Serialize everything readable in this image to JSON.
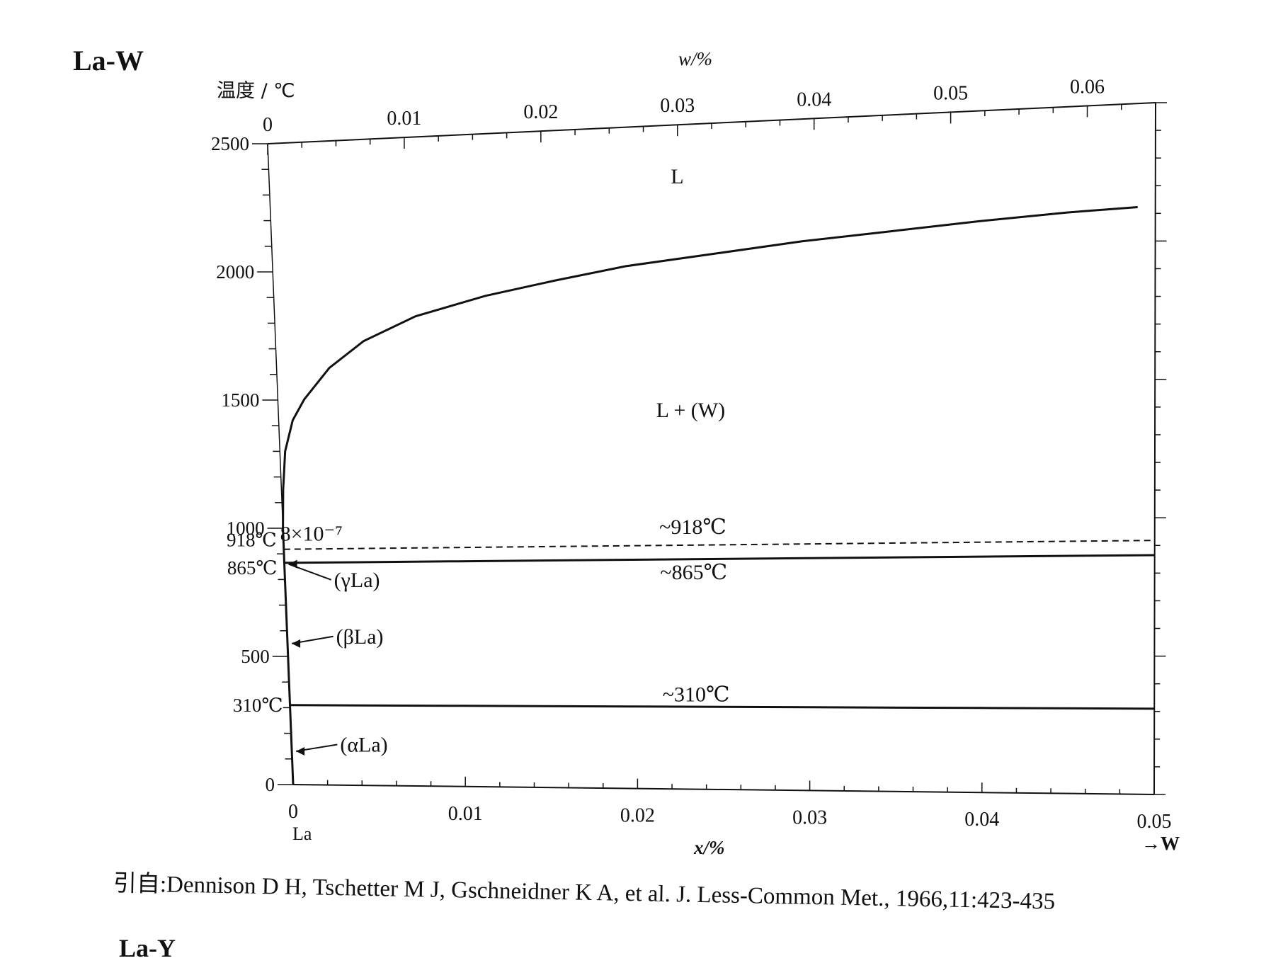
{
  "figure": {
    "title": "La-W",
    "temp_label": "温度 / ℃",
    "top_axis_label": "w/%",
    "bottom_axis_label": "x/%",
    "w_end_label": "→W",
    "la_label": "La",
    "citation": "引自:Dennison D H, Tschetter M J, Gschneidner K A, et al. J. Less-Common Met., 1966,11:423-435",
    "next_title": "La-Y"
  },
  "chart_data": {
    "type": "line",
    "title": "La-W",
    "ylabel": "温度 / ℃",
    "xlabel": "x/%",
    "x2label": "w/%",
    "ylim": [
      0,
      2500
    ],
    "xlim": [
      0,
      0.05
    ],
    "x2lim": [
      0,
      0.065
    ],
    "y_ticks": [
      {
        "value": 0,
        "label": "0"
      },
      {
        "value": 500,
        "label": "500"
      },
      {
        "value": 1000,
        "label": "1000"
      },
      {
        "value": 1500,
        "label": "1500"
      },
      {
        "value": 2000,
        "label": "2000"
      },
      {
        "value": 2500,
        "label": "2500"
      }
    ],
    "y_special_labels": [
      {
        "value": 918,
        "label": "918℃"
      },
      {
        "value": 865,
        "label": "865℃"
      },
      {
        "value": 310,
        "label": "310℃"
      }
    ],
    "x_ticks": [
      {
        "value": 0,
        "label": "0"
      },
      {
        "value": 0.01,
        "label": "0.01"
      },
      {
        "value": 0.02,
        "label": "0.02"
      },
      {
        "value": 0.03,
        "label": "0.03"
      },
      {
        "value": 0.04,
        "label": "0.04"
      },
      {
        "value": 0.05,
        "label": "0.05"
      }
    ],
    "x2_ticks": [
      {
        "value": 0,
        "label": "0"
      },
      {
        "value": 0.01,
        "label": "0.01"
      },
      {
        "value": 0.02,
        "label": "0.02"
      },
      {
        "value": 0.03,
        "label": "0.03"
      },
      {
        "value": 0.04,
        "label": "0.04"
      },
      {
        "value": 0.05,
        "label": "0.05"
      },
      {
        "value": 0.06,
        "label": "0.06"
      }
    ],
    "series": [
      {
        "name": "liquidus",
        "style": "solid",
        "points": [
          [
            0,
            1000
          ],
          [
            0.0001,
            1150
          ],
          [
            0.0003,
            1300
          ],
          [
            0.0008,
            1420
          ],
          [
            0.0015,
            1500
          ],
          [
            0.003,
            1620
          ],
          [
            0.005,
            1720
          ],
          [
            0.008,
            1810
          ],
          [
            0.012,
            1880
          ],
          [
            0.016,
            1930
          ],
          [
            0.02,
            1975
          ],
          [
            0.025,
            2010
          ],
          [
            0.03,
            2045
          ],
          [
            0.035,
            2070
          ],
          [
            0.04,
            2095
          ],
          [
            0.045,
            2115
          ],
          [
            0.049,
            2125
          ]
        ]
      },
      {
        "name": "~918℃",
        "style": "dashed",
        "points": [
          [
            0,
            918
          ],
          [
            0.01,
            918
          ],
          [
            0.02,
            918
          ],
          [
            0.03,
            918
          ],
          [
            0.04,
            918
          ],
          [
            0.05,
            918
          ]
        ]
      },
      {
        "name": "~865℃",
        "style": "solid",
        "points": [
          [
            0,
            865
          ],
          [
            0.01,
            865
          ],
          [
            0.02,
            865
          ],
          [
            0.03,
            865
          ],
          [
            0.04,
            865
          ],
          [
            0.05,
            865
          ]
        ]
      },
      {
        "name": "~310℃",
        "style": "solid",
        "points": [
          [
            0,
            310
          ],
          [
            0.01,
            310
          ],
          [
            0.02,
            310
          ],
          [
            0.03,
            310
          ],
          [
            0.04,
            310
          ],
          [
            0.05,
            310
          ]
        ]
      },
      {
        "name": "La solvus",
        "style": "solid",
        "points": [
          [
            0,
            0
          ],
          [
            0,
            865
          ],
          [
            0,
            918
          ],
          [
            0,
            1000
          ]
        ]
      }
    ],
    "annotations": [
      {
        "text": "L",
        "x": 0.023,
        "y": 2280
      },
      {
        "text": "L + (W)",
        "x": 0.0235,
        "y": 1400
      },
      {
        "text": "~918℃",
        "x": 0.0235,
        "y": 960
      },
      {
        "text": "~865℃",
        "x": 0.0235,
        "y": 790
      },
      {
        "text": "~310℃",
        "x": 0.0235,
        "y": 330
      },
      {
        "text": "8×10⁻⁷",
        "x": 0.0016,
        "y": 950
      },
      {
        "text": "(γLa)",
        "x": 0.0028,
        "y": 770,
        "arrow_to": [
          0,
          860
        ]
      },
      {
        "text": "(βLa)",
        "x": 0.0028,
        "y": 550,
        "arrow_to": [
          0,
          550
        ]
      },
      {
        "text": "(αLa)",
        "x": 0.0028,
        "y": 130,
        "arrow_to": [
          0,
          130
        ]
      }
    ],
    "grid": false,
    "legend": "none"
  }
}
